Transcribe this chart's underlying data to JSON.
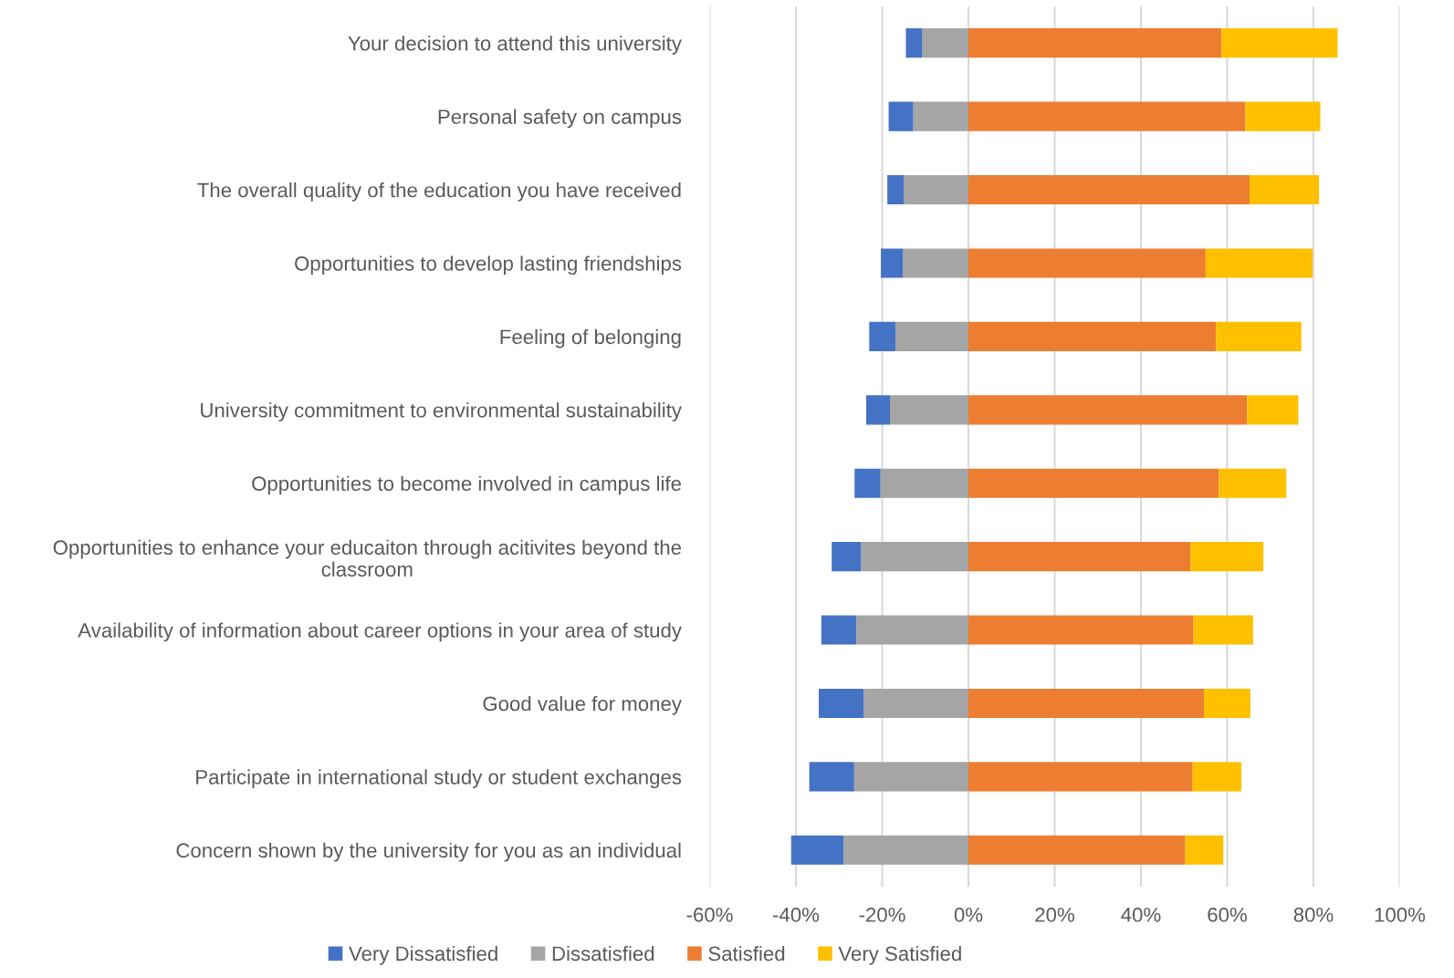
{
  "chart_data": {
    "type": "bar",
    "orientation": "horizontal",
    "stacked": true,
    "categories": [
      "Your decision to attend this university",
      "Personal safety on campus",
      "The overall quality of the education you have received",
      "Opportunities to develop lasting friendships",
      "Feeling of belonging",
      "University commitment to environmental sustainability",
      "Opportunities to become involved in campus life",
      "Opportunities to enhance your educaiton through acitivites beyond the classroom",
      "Availability of information about career options in your area of study",
      "Good value for money",
      "Participate in international study or student exchanges",
      "Concern shown by the university for you as an individual"
    ],
    "series": [
      {
        "name": "Dissatisfied",
        "color": "#a5a5a5",
        "values": [
          -10.7,
          -12.8,
          -15.0,
          -15.2,
          -16.9,
          -18.2,
          -20.4,
          -24.9,
          -26.0,
          -24.3,
          -26.5,
          -29.0
        ]
      },
      {
        "name": "Very Dissatisfied",
        "color": "#4472c4",
        "values": [
          -3.8,
          -5.7,
          -3.8,
          -5.1,
          -6.1,
          -5.5,
          -6.0,
          -6.8,
          -8.1,
          -10.4,
          -10.4,
          -12.1
        ]
      },
      {
        "name": "Satisfied",
        "color": "#ed7d31",
        "values": [
          58.7,
          64.2,
          65.2,
          55.0,
          57.4,
          64.6,
          58.1,
          51.5,
          52.2,
          54.6,
          52.0,
          50.3
        ]
      },
      {
        "name": "Very Satisfied",
        "color": "#ffc000",
        "values": [
          26.9,
          17.4,
          16.1,
          24.8,
          19.8,
          11.9,
          15.6,
          16.9,
          13.8,
          10.8,
          11.3,
          8.8
        ]
      }
    ],
    "xlim": [
      -60,
      100
    ],
    "xticks": [
      {
        "value": -60,
        "label": "-60%"
      },
      {
        "value": -40,
        "label": "-40%"
      },
      {
        "value": -20,
        "label": "-20%"
      },
      {
        "value": 0,
        "label": "0%"
      },
      {
        "value": 20,
        "label": "20%"
      },
      {
        "value": 40,
        "label": "40%"
      },
      {
        "value": 60,
        "label": "60%"
      },
      {
        "value": 80,
        "label": "80%"
      },
      {
        "value": 100,
        "label": "100%"
      }
    ],
    "grid": "x",
    "legend": "bottom"
  }
}
